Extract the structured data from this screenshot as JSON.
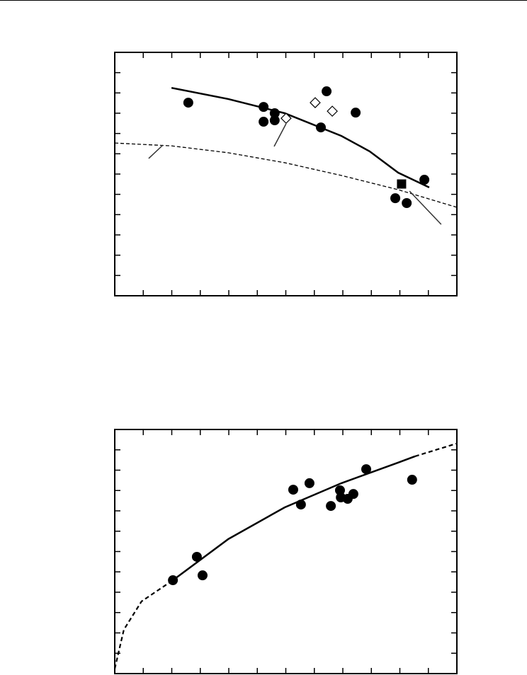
{
  "chart_data": [
    {
      "type": "scatter",
      "xlim": [
        0,
        12
      ],
      "ylim": [
        0,
        12
      ],
      "xticks": [
        1,
        2,
        3,
        4,
        5,
        6,
        7,
        8,
        9,
        10,
        11
      ],
      "yticks": [
        1,
        2,
        3,
        4,
        5,
        6,
        7,
        8,
        9,
        10,
        11
      ],
      "series": [
        {
          "marker": "line",
          "line_style": "solid",
          "color": "#000000",
          "x": [
            1.99,
            3.98,
            5.96,
            7.95,
            8.94,
            9.94,
            11.03
          ],
          "values": [
            10.25,
            9.7,
            9.0,
            7.88,
            7.12,
            6.07,
            5.34
          ]
        },
        {
          "marker": "line",
          "line_style": "dashed",
          "color": "#000000",
          "x": [
            0,
            1.99,
            3.98,
            5.96,
            7.95,
            9.94,
            12
          ],
          "values": [
            7.53,
            7.39,
            7.05,
            6.56,
            5.93,
            5.23,
            4.36
          ]
        },
        {
          "marker": "line",
          "line_style": "thin",
          "color": "#333333",
          "x": [
            1.19,
            1.69,
            null,
            5.59,
            6.01,
            null,
            10.34,
            11.45
          ],
          "values": [
            6.77,
            7.43,
            null,
            7.36,
            8.48,
            null,
            5.16,
            3.52
          ]
        },
        {
          "marker": "circle",
          "color": "#000000",
          "x": [
            2.58,
            5.22,
            5.22,
            5.61,
            5.61,
            7.43,
            7.23,
            8.45,
            10.86,
            9.84,
            10.24
          ],
          "values": [
            9.52,
            9.31,
            8.58,
            9.0,
            8.65,
            10.08,
            8.3,
            9.03,
            5.72,
            4.81,
            4.57
          ]
        },
        {
          "marker": "diamond",
          "color": "#000000",
          "x": [
            7.03,
            7.63,
            6.01
          ],
          "values": [
            9.52,
            9.1,
            8.75
          ]
        },
        {
          "marker": "square",
          "color": "#000000",
          "x": [
            10.06
          ],
          "values": [
            5.51
          ]
        }
      ]
    },
    {
      "type": "scatter",
      "xlim": [
        0,
        12
      ],
      "ylim": [
        0,
        12
      ],
      "xticks": [
        1,
        2,
        3,
        4,
        5,
        6,
        7,
        8,
        9,
        10,
        11
      ],
      "yticks": [
        1,
        2,
        3,
        4,
        5,
        6,
        7,
        8,
        9,
        10,
        11
      ],
      "series": [
        {
          "marker": "line",
          "line_style": "solid",
          "color": "#000000",
          "x": [
            2.04,
            3.98,
            5.96,
            7.95,
            9.94,
            10.53
          ],
          "values": [
            4.59,
            6.61,
            8.17,
            9.36,
            10.37,
            10.68
          ]
        },
        {
          "marker": "line",
          "line_style": "dashed",
          "color": "#000000",
          "x": [
            0,
            0.32,
            0.94,
            2.04,
            null,
            10.53,
            11.99
          ],
          "values": [
            0.24,
            2.16,
            3.55,
            4.59,
            null,
            10.68,
            11.31
          ]
        },
        {
          "marker": "circle",
          "color": "#000000",
          "x": [
            2.04,
            2.88,
            3.08,
            6.26,
            6.53,
            6.83,
            7.58,
            7.9,
            7.93,
            8.17,
            8.37,
            8.82,
            10.43
          ],
          "values": [
            4.59,
            5.74,
            4.83,
            9.04,
            8.31,
            9.36,
            8.24,
            9.01,
            8.66,
            8.59,
            8.83,
            10.05,
            9.53
          ]
        }
      ]
    }
  ]
}
